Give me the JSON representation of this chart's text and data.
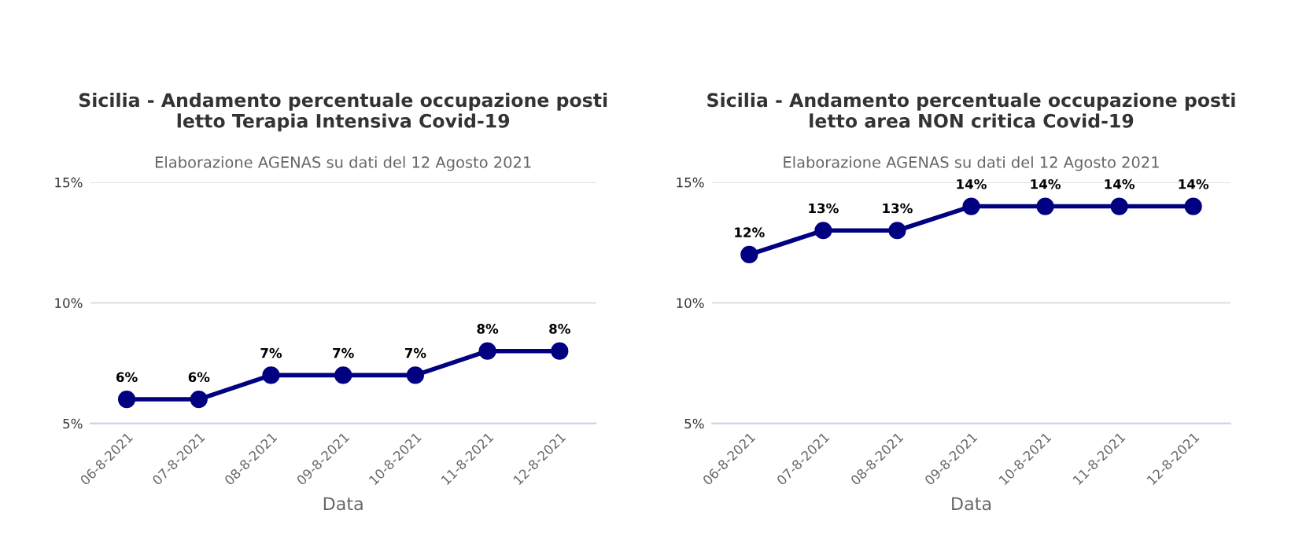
{
  "chart_data": [
    {
      "type": "line",
      "title": "Sicilia - Andamento percentuale occupazione posti letto Terapia Intensiva Covid-19",
      "subtitle": "Elaborazione AGENAS su dati del 12 Agosto 2021",
      "xlabel": "Data",
      "categories": [
        "06-8-2021",
        "07-8-2021",
        "08-8-2021",
        "09-8-2021",
        "10-8-2021",
        "11-8-2021",
        "12-8-2021"
      ],
      "series": [
        {
          "color": "#000080",
          "values": [
            6,
            6,
            7,
            7,
            7,
            8,
            8
          ],
          "value_labels": [
            "6%",
            "6%",
            "7%",
            "7%",
            "7%",
            "8%",
            "8%"
          ]
        }
      ],
      "ylim": [
        5,
        15
      ],
      "yticks": [
        {
          "value": 5,
          "label": "5%"
        },
        {
          "value": 10,
          "label": "10%"
        },
        {
          "value": 15,
          "label": "15%"
        }
      ],
      "grid": "y",
      "marker": "circle",
      "line_style": "solid"
    },
    {
      "type": "line",
      "title": "Sicilia - Andamento percentuale occupazione posti letto area NON critica Covid-19",
      "subtitle": "Elaborazione AGENAS su dati del 12 Agosto 2021",
      "xlabel": "Data",
      "categories": [
        "06-8-2021",
        "07-8-2021",
        "08-8-2021",
        "09-8-2021",
        "10-8-2021",
        "11-8-2021",
        "12-8-2021"
      ],
      "series": [
        {
          "color": "#000080",
          "values": [
            12,
            13,
            13,
            14,
            14,
            14,
            14
          ],
          "value_labels": [
            "12%",
            "13%",
            "13%",
            "14%",
            "14%",
            "14%",
            "14%"
          ]
        }
      ],
      "ylim": [
        5,
        15
      ],
      "yticks": [
        {
          "value": 5,
          "label": "5%"
        },
        {
          "value": 10,
          "label": "10%"
        },
        {
          "value": 15,
          "label": "15%"
        }
      ],
      "grid": "y",
      "marker": "circle",
      "line_style": "solid"
    }
  ]
}
